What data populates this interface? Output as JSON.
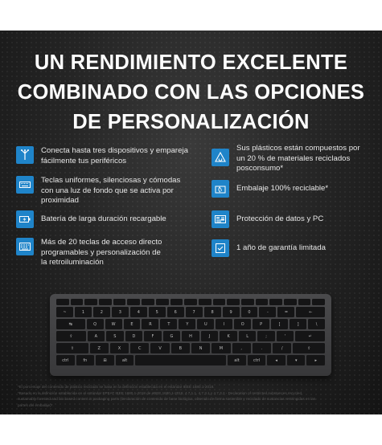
{
  "headline": [
    "UN RENDIMIENTO EXCELENTE",
    "COMBINADO CON LAS OPCIONES",
    "DE PERSONALIZACIÓN"
  ],
  "features_left": [
    {
      "icon": "multi-device-icon",
      "lines": [
        "Conecta hasta tres dispositivos y empareja",
        "fácilmente tus periféricos"
      ]
    },
    {
      "icon": "keyboard-backlight-icon",
      "lines": [
        "Teclas uniformes, silenciosas y cómodas",
        "con una luz de fondo que se activa por",
        "proximidad"
      ]
    },
    {
      "icon": "battery-icon",
      "lines": [
        "Batería de larga duración recargable"
      ]
    },
    {
      "icon": "hotkeys-icon",
      "lines": [
        "Más de 20 teclas de acceso directo",
        "programables y personalización de",
        "la retroiluminación"
      ]
    }
  ],
  "features_right": [
    {
      "icon": "recycle-icon",
      "lines": [
        "Sus plásticos están compuestos por",
        "un 20 % de materiales reciclados",
        "posconsumo*"
      ]
    },
    {
      "icon": "packaging-icon",
      "lines": [
        "Embalaje 100% reciclable*"
      ]
    },
    {
      "icon": "data-protection-icon",
      "lines": [
        "Protección de datos y PC"
      ]
    },
    {
      "icon": "warranty-icon",
      "lines": [
        "1 año de garantía limitada"
      ]
    }
  ],
  "keyboard": {
    "rows": [
      [
        "~",
        "1",
        "2",
        "3",
        "4",
        "5",
        "6",
        "7",
        "8",
        "9",
        "0",
        "-",
        "=",
        "←"
      ],
      [
        "↹",
        "Q",
        "W",
        "E",
        "R",
        "T",
        "Y",
        "U",
        "I",
        "O",
        "P",
        "[",
        "]",
        "\\"
      ],
      [
        "⇪",
        "A",
        "S",
        "D",
        "F",
        "G",
        "H",
        "J",
        "K",
        "L",
        ";",
        "'",
        "↵"
      ],
      [
        "⇧",
        "Z",
        "X",
        "C",
        "V",
        "B",
        "N",
        "M",
        ",",
        ".",
        "/",
        "⇧"
      ],
      [
        "ctrl",
        "fn",
        "⊞",
        "alt",
        "",
        "alt",
        "ctrl",
        "◂",
        "▾",
        "▸"
      ]
    ]
  },
  "footnote": [
    "*El porcentaje del contenido de plástico reciclado se basa en la definición establecida en el estándar IEEE 1680.1-2018.",
    "*Basado en la definición establecida en el estándar EPEAT IEEE 1680.1-2018 de eBEE 1680.1-2018, 4.7.1.1, 4.7.3.1 y 4.7.3.2 - Declaration of restricted substances recycled,",
    "sustainably forested and bio based content in packaging parts (Declaración de contenido de base biológica, obtenido de forma sostenible y reciclado de sustancias restringidas en las",
    "partes del embalaje)*."
  ]
}
